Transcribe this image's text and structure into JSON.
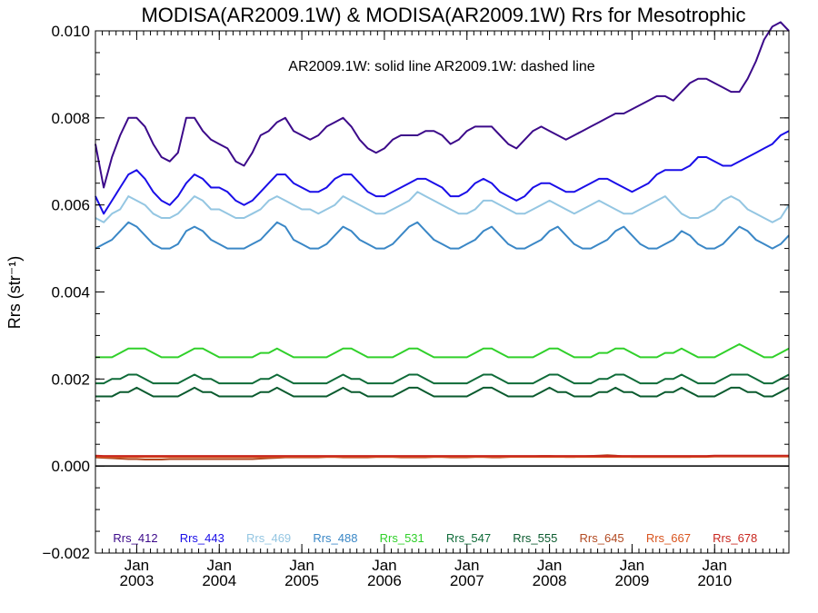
{
  "chart_data": {
    "type": "line",
    "title": "MODISA(AR2009.1W) & MODISA(AR2009.1W)  Rrs for Mesotrophic",
    "annotation": "AR2009.1W: solid line   AR2009.1W: dashed line",
    "ylabel": "Rrs (str⁻¹)",
    "ylim": [
      -0.002,
      0.01
    ],
    "yticks": [
      -0.002,
      0.0,
      0.002,
      0.004,
      0.006,
      0.008,
      0.01
    ],
    "ytick_labels": [
      "−0.002",
      "0.000",
      "0.002",
      "0.004",
      "0.006",
      "0.008",
      "0.010"
    ],
    "xlim": [
      2002.5,
      2010.9
    ],
    "xticks": [
      {
        "x": 2003.0,
        "month": "Jan",
        "year": "2003"
      },
      {
        "x": 2004.0,
        "month": "Jan",
        "year": "2004"
      },
      {
        "x": 2005.0,
        "month": "Jan",
        "year": "2005"
      },
      {
        "x": 2006.0,
        "month": "Jan",
        "year": "2006"
      },
      {
        "x": 2007.0,
        "month": "Jan",
        "year": "2007"
      },
      {
        "x": 2008.0,
        "month": "Jan",
        "year": "2008"
      },
      {
        "x": 2009.0,
        "month": "Jan",
        "year": "2009"
      },
      {
        "x": 2010.0,
        "month": "Jan",
        "year": "2010"
      }
    ],
    "x": [
      2002.5,
      2002.6,
      2002.7,
      2002.8,
      2002.9,
      2003.0,
      2003.1,
      2003.2,
      2003.3,
      2003.4,
      2003.5,
      2003.6,
      2003.7,
      2003.8,
      2003.9,
      2004.0,
      2004.1,
      2004.2,
      2004.3,
      2004.4,
      2004.5,
      2004.6,
      2004.7,
      2004.8,
      2004.9,
      2005.0,
      2005.1,
      2005.2,
      2005.3,
      2005.4,
      2005.5,
      2005.6,
      2005.7,
      2005.8,
      2005.9,
      2006.0,
      2006.1,
      2006.2,
      2006.3,
      2006.4,
      2006.5,
      2006.6,
      2006.7,
      2006.8,
      2006.9,
      2007.0,
      2007.1,
      2007.2,
      2007.3,
      2007.4,
      2007.5,
      2007.6,
      2007.7,
      2007.8,
      2007.9,
      2008.0,
      2008.1,
      2008.2,
      2008.3,
      2008.4,
      2008.5,
      2008.6,
      2008.7,
      2008.8,
      2008.9,
      2009.0,
      2009.1,
      2009.2,
      2009.3,
      2009.4,
      2009.5,
      2009.6,
      2009.7,
      2009.8,
      2009.9,
      2010.0,
      2010.1,
      2010.2,
      2010.3,
      2010.4,
      2010.5,
      2010.6,
      2010.7,
      2010.8,
      2010.9
    ],
    "series": [
      {
        "name": "Rrs_412",
        "color": "#3c0a8a",
        "values": [
          0.0074,
          0.0064,
          0.0071,
          0.0076,
          0.008,
          0.008,
          0.0078,
          0.0074,
          0.0071,
          0.007,
          0.0072,
          0.008,
          0.008,
          0.0077,
          0.0075,
          0.0074,
          0.0073,
          0.007,
          0.0069,
          0.0072,
          0.0076,
          0.0077,
          0.0079,
          0.008,
          0.0077,
          0.0076,
          0.0075,
          0.0076,
          0.0078,
          0.0079,
          0.008,
          0.0078,
          0.0075,
          0.0073,
          0.0072,
          0.0073,
          0.0075,
          0.0076,
          0.0076,
          0.0076,
          0.0077,
          0.0077,
          0.0076,
          0.0074,
          0.0075,
          0.0077,
          0.0078,
          0.0078,
          0.0078,
          0.0076,
          0.0074,
          0.0073,
          0.0075,
          0.0077,
          0.0078,
          0.0077,
          0.0076,
          0.0075,
          0.0076,
          0.0077,
          0.0078,
          0.0079,
          0.008,
          0.0081,
          0.0081,
          0.0082,
          0.0083,
          0.0084,
          0.0085,
          0.0085,
          0.0084,
          0.0086,
          0.0088,
          0.0089,
          0.0089,
          0.0088,
          0.0087,
          0.0086,
          0.0086,
          0.0089,
          0.0093,
          0.0098,
          0.0101,
          0.0102,
          0.01
        ]
      },
      {
        "name": "Rrs_443",
        "color": "#1a0ee8",
        "values": [
          0.0062,
          0.0058,
          0.0061,
          0.0064,
          0.0067,
          0.0068,
          0.0066,
          0.0063,
          0.0061,
          0.006,
          0.0062,
          0.0065,
          0.0067,
          0.0066,
          0.0064,
          0.0064,
          0.0063,
          0.0061,
          0.006,
          0.0061,
          0.0063,
          0.0065,
          0.0067,
          0.0067,
          0.0065,
          0.0064,
          0.0063,
          0.0063,
          0.0064,
          0.0066,
          0.0067,
          0.0067,
          0.0065,
          0.0063,
          0.0062,
          0.0062,
          0.0063,
          0.0064,
          0.0065,
          0.0066,
          0.0066,
          0.0065,
          0.0064,
          0.0062,
          0.0062,
          0.0063,
          0.0065,
          0.0066,
          0.0065,
          0.0063,
          0.0062,
          0.0061,
          0.0062,
          0.0064,
          0.0065,
          0.0065,
          0.0064,
          0.0063,
          0.0063,
          0.0064,
          0.0065,
          0.0066,
          0.0066,
          0.0065,
          0.0064,
          0.0063,
          0.0064,
          0.0065,
          0.0067,
          0.0068,
          0.0068,
          0.0068,
          0.0069,
          0.0071,
          0.0071,
          0.007,
          0.0069,
          0.0069,
          0.007,
          0.0071,
          0.0072,
          0.0073,
          0.0074,
          0.0076,
          0.0077
        ]
      },
      {
        "name": "Rrs_469",
        "color": "#94c6e2",
        "values": [
          0.0057,
          0.0056,
          0.0058,
          0.0059,
          0.0062,
          0.0061,
          0.006,
          0.0058,
          0.0057,
          0.0057,
          0.0058,
          0.006,
          0.0062,
          0.0061,
          0.0059,
          0.0059,
          0.0058,
          0.0057,
          0.0057,
          0.0058,
          0.0059,
          0.0061,
          0.0062,
          0.0061,
          0.006,
          0.0059,
          0.0059,
          0.0058,
          0.0059,
          0.006,
          0.0062,
          0.0061,
          0.006,
          0.0059,
          0.0058,
          0.0058,
          0.0059,
          0.006,
          0.0061,
          0.0063,
          0.0062,
          0.0061,
          0.006,
          0.0059,
          0.0058,
          0.0058,
          0.0059,
          0.0061,
          0.0061,
          0.006,
          0.0059,
          0.0058,
          0.0058,
          0.0059,
          0.006,
          0.0061,
          0.006,
          0.0059,
          0.0058,
          0.0059,
          0.006,
          0.0061,
          0.006,
          0.0059,
          0.0058,
          0.0058,
          0.0059,
          0.006,
          0.0061,
          0.0062,
          0.006,
          0.0058,
          0.0057,
          0.0057,
          0.0058,
          0.0059,
          0.0061,
          0.0062,
          0.0061,
          0.0059,
          0.0058,
          0.0057,
          0.0056,
          0.0057,
          0.006
        ]
      },
      {
        "name": "Rrs_488",
        "color": "#3a87c6",
        "values": [
          0.005,
          0.0051,
          0.0052,
          0.0054,
          0.0056,
          0.0055,
          0.0053,
          0.0051,
          0.005,
          0.005,
          0.0051,
          0.0054,
          0.0055,
          0.0054,
          0.0052,
          0.0051,
          0.005,
          0.005,
          0.005,
          0.0051,
          0.0052,
          0.0054,
          0.0056,
          0.0055,
          0.0052,
          0.0051,
          0.005,
          0.005,
          0.0051,
          0.0053,
          0.0055,
          0.0054,
          0.0052,
          0.0051,
          0.005,
          0.005,
          0.0051,
          0.0053,
          0.0055,
          0.0056,
          0.0054,
          0.0052,
          0.0051,
          0.005,
          0.005,
          0.0051,
          0.0052,
          0.0054,
          0.0055,
          0.0053,
          0.0051,
          0.005,
          0.005,
          0.0051,
          0.0052,
          0.0054,
          0.0055,
          0.0053,
          0.0051,
          0.005,
          0.005,
          0.0051,
          0.0052,
          0.0054,
          0.0055,
          0.0053,
          0.0051,
          0.005,
          0.005,
          0.0051,
          0.0052,
          0.0054,
          0.0053,
          0.0051,
          0.005,
          0.005,
          0.0051,
          0.0053,
          0.0055,
          0.0054,
          0.0052,
          0.0051,
          0.005,
          0.0051,
          0.0053
        ]
      },
      {
        "name": "Rrs_531",
        "color": "#30d02a",
        "values": [
          0.0025,
          0.0025,
          0.0025,
          0.0026,
          0.0027,
          0.0027,
          0.0027,
          0.0026,
          0.0025,
          0.0025,
          0.0025,
          0.0026,
          0.0027,
          0.0027,
          0.0026,
          0.0025,
          0.0025,
          0.0025,
          0.0025,
          0.0025,
          0.0026,
          0.0026,
          0.0027,
          0.0026,
          0.0025,
          0.0025,
          0.0025,
          0.0025,
          0.0025,
          0.0026,
          0.0027,
          0.0027,
          0.0026,
          0.0025,
          0.0025,
          0.0025,
          0.0025,
          0.0026,
          0.0027,
          0.0027,
          0.0026,
          0.0025,
          0.0025,
          0.0025,
          0.0025,
          0.0025,
          0.0026,
          0.0027,
          0.0027,
          0.0026,
          0.0025,
          0.0025,
          0.0025,
          0.0025,
          0.0026,
          0.0027,
          0.0027,
          0.0026,
          0.0025,
          0.0025,
          0.0025,
          0.0026,
          0.0026,
          0.0027,
          0.0027,
          0.0026,
          0.0025,
          0.0025,
          0.0025,
          0.0026,
          0.0026,
          0.0027,
          0.0026,
          0.0025,
          0.0025,
          0.0025,
          0.0026,
          0.0027,
          0.0028,
          0.0027,
          0.0026,
          0.0025,
          0.0025,
          0.0026,
          0.0027
        ]
      },
      {
        "name": "Rrs_547",
        "color": "#0e6b38",
        "values": [
          0.0019,
          0.0019,
          0.002,
          0.002,
          0.0021,
          0.0021,
          0.002,
          0.0019,
          0.0019,
          0.0019,
          0.0019,
          0.002,
          0.0021,
          0.002,
          0.002,
          0.0019,
          0.0019,
          0.0019,
          0.0019,
          0.0019,
          0.002,
          0.002,
          0.0021,
          0.002,
          0.0019,
          0.0019,
          0.0019,
          0.0019,
          0.0019,
          0.002,
          0.0021,
          0.002,
          0.002,
          0.0019,
          0.0019,
          0.0019,
          0.0019,
          0.002,
          0.0021,
          0.0021,
          0.002,
          0.0019,
          0.0019,
          0.0019,
          0.0019,
          0.0019,
          0.002,
          0.0021,
          0.0021,
          0.002,
          0.0019,
          0.0019,
          0.0019,
          0.0019,
          0.002,
          0.0021,
          0.0021,
          0.002,
          0.0019,
          0.0019,
          0.0019,
          0.002,
          0.002,
          0.0021,
          0.0021,
          0.002,
          0.0019,
          0.0019,
          0.0019,
          0.002,
          0.002,
          0.0021,
          0.002,
          0.0019,
          0.0019,
          0.0019,
          0.002,
          0.0021,
          0.0021,
          0.0021,
          0.002,
          0.0019,
          0.0019,
          0.002,
          0.0021
        ]
      },
      {
        "name": "Rrs_555",
        "color": "#0a5a2e",
        "values": [
          0.0016,
          0.0016,
          0.0016,
          0.0017,
          0.0017,
          0.0018,
          0.0017,
          0.0016,
          0.0016,
          0.0016,
          0.0016,
          0.0017,
          0.0018,
          0.0017,
          0.0017,
          0.0016,
          0.0016,
          0.0016,
          0.0016,
          0.0016,
          0.0017,
          0.0017,
          0.0018,
          0.0017,
          0.0016,
          0.0016,
          0.0016,
          0.0016,
          0.0016,
          0.0017,
          0.0018,
          0.0017,
          0.0017,
          0.0016,
          0.0016,
          0.0016,
          0.0016,
          0.0017,
          0.0018,
          0.0018,
          0.0017,
          0.0016,
          0.0016,
          0.0016,
          0.0016,
          0.0016,
          0.0017,
          0.0018,
          0.0018,
          0.0017,
          0.0016,
          0.0016,
          0.0016,
          0.0016,
          0.0017,
          0.0018,
          0.0017,
          0.0017,
          0.0016,
          0.0016,
          0.0016,
          0.0017,
          0.0017,
          0.0018,
          0.0017,
          0.0017,
          0.0016,
          0.0016,
          0.0016,
          0.0017,
          0.0017,
          0.0018,
          0.0017,
          0.0016,
          0.0016,
          0.0016,
          0.0017,
          0.0018,
          0.0018,
          0.0017,
          0.0017,
          0.0016,
          0.0016,
          0.0017,
          0.0018
        ]
      },
      {
        "name": "Rrs_645",
        "color": "#b24a22",
        "values": [
          0.0002,
          0.00019,
          0.00018,
          0.00017,
          0.00016,
          0.00016,
          0.00015,
          0.00015,
          0.00015,
          0.00016,
          0.00016,
          0.00016,
          0.00016,
          0.00016,
          0.00016,
          0.00016,
          0.00016,
          0.00016,
          0.00016,
          0.00016,
          0.00017,
          0.00018,
          0.00019,
          0.0002,
          0.0002,
          0.0002,
          0.0002,
          0.0002,
          0.00021,
          0.00021,
          0.0002,
          0.0002,
          0.0002,
          0.0002,
          0.00021,
          0.00021,
          0.00021,
          0.0002,
          0.0002,
          0.0002,
          0.0002,
          0.00021,
          0.00021,
          0.0002,
          0.0002,
          0.0002,
          0.00021,
          0.00021,
          0.0002,
          0.0002,
          0.00021,
          0.00022,
          0.00022,
          0.00022,
          0.00023,
          0.00023,
          0.00022,
          0.00021,
          0.00021,
          0.00022,
          0.00023,
          0.00024,
          0.00025,
          0.00024,
          0.00022,
          0.00021,
          0.00021,
          0.00021,
          0.00021,
          0.00021,
          0.00021,
          0.00021,
          0.00021,
          0.00022,
          0.00022,
          0.00022,
          0.00022,
          0.00022,
          0.00022,
          0.00022,
          0.00022,
          0.00022,
          0.00022,
          0.00022,
          0.00022
        ]
      },
      {
        "name": "Rrs_667",
        "color": "#d9541e",
        "values": [
          0.00022,
          0.00021,
          0.00021,
          0.00021,
          0.00021,
          0.00021,
          0.00021,
          0.00021,
          0.00021,
          0.00021,
          0.00021,
          0.00021,
          0.00021,
          0.00021,
          0.00021,
          0.00021,
          0.00021,
          0.00021,
          0.00021,
          0.00021,
          0.00021,
          0.00021,
          0.00021,
          0.00021,
          0.00021,
          0.00021,
          0.00021,
          0.00021,
          0.00021,
          0.00021,
          0.00021,
          0.00021,
          0.00021,
          0.00021,
          0.00021,
          0.00021,
          0.00021,
          0.00021,
          0.00021,
          0.00021,
          0.00021,
          0.00021,
          0.00021,
          0.00021,
          0.00021,
          0.00021,
          0.00021,
          0.00021,
          0.00021,
          0.00021,
          0.00021,
          0.00021,
          0.00021,
          0.00021,
          0.00021,
          0.00021,
          0.00021,
          0.00021,
          0.00021,
          0.00021,
          0.00021,
          0.00021,
          0.00021,
          0.00021,
          0.00021,
          0.00021,
          0.00021,
          0.00021,
          0.00021,
          0.00021,
          0.00021,
          0.00021,
          0.00021,
          0.00021,
          0.00021,
          0.00022,
          0.00022,
          0.00022,
          0.00022,
          0.00022,
          0.00022,
          0.00022,
          0.00022,
          0.00022,
          0.00022
        ]
      },
      {
        "name": "Rrs_678",
        "color": "#c8261e",
        "values": [
          0.00024,
          0.00023,
          0.00023,
          0.00023,
          0.00023,
          0.00023,
          0.00023,
          0.00023,
          0.00023,
          0.00023,
          0.00023,
          0.00023,
          0.00023,
          0.00023,
          0.00023,
          0.00023,
          0.00023,
          0.00023,
          0.00023,
          0.00023,
          0.00023,
          0.00023,
          0.00023,
          0.00023,
          0.00023,
          0.00023,
          0.00023,
          0.00023,
          0.00023,
          0.00023,
          0.00023,
          0.00023,
          0.00023,
          0.00023,
          0.00023,
          0.00023,
          0.00023,
          0.00023,
          0.00023,
          0.00023,
          0.00023,
          0.00023,
          0.00023,
          0.00023,
          0.00023,
          0.00023,
          0.00023,
          0.00023,
          0.00023,
          0.00023,
          0.00023,
          0.00023,
          0.00023,
          0.00023,
          0.00023,
          0.00023,
          0.00023,
          0.00023,
          0.00023,
          0.00023,
          0.00023,
          0.00023,
          0.00023,
          0.00023,
          0.00023,
          0.00023,
          0.00023,
          0.00023,
          0.00023,
          0.00023,
          0.00023,
          0.00023,
          0.00023,
          0.00023,
          0.00023,
          0.00024,
          0.00024,
          0.00024,
          0.00024,
          0.00024,
          0.00024,
          0.00024,
          0.00024,
          0.00024,
          0.00024
        ]
      }
    ],
    "reference_line": {
      "y": 0.0,
      "color": "#000000"
    },
    "grid": false,
    "legend_position": "bottom"
  }
}
